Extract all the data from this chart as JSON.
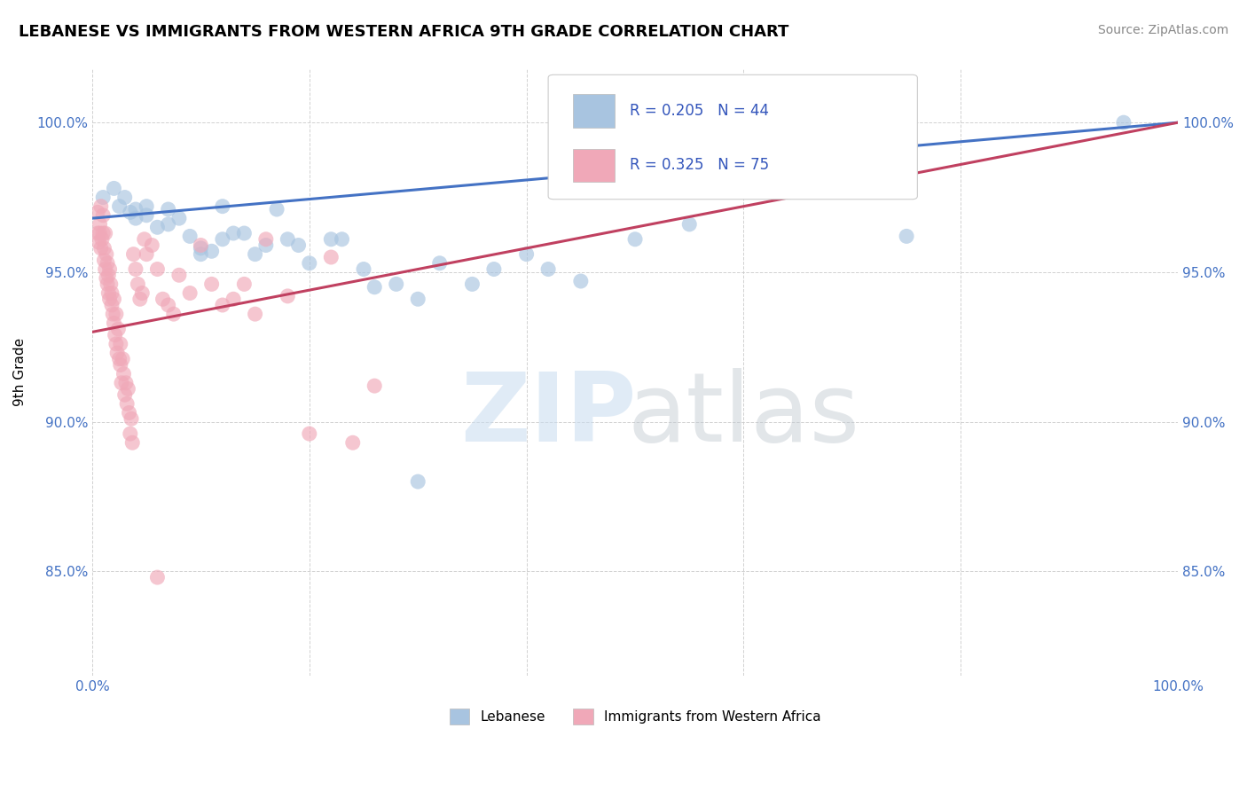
{
  "title": "LEBANESE VS IMMIGRANTS FROM WESTERN AFRICA 9TH GRADE CORRELATION CHART",
  "source_text": "Source: ZipAtlas.com",
  "ylabel": "9th Grade",
  "xlim": [
    0.0,
    1.0
  ],
  "ylim": [
    0.815,
    1.018
  ],
  "xticks": [
    0.0,
    0.2,
    0.4,
    0.6,
    0.8,
    1.0
  ],
  "xtick_labels": [
    "0.0%",
    "",
    "",
    "",
    "",
    "100.0%"
  ],
  "yticks": [
    0.85,
    0.9,
    0.95,
    1.0
  ],
  "ytick_labels": [
    "85.0%",
    "90.0%",
    "95.0%",
    "100.0%"
  ],
  "blue_color": "#A8C4E0",
  "pink_color": "#F0A8B8",
  "blue_line_color": "#4472C4",
  "pink_line_color": "#C04060",
  "legend_label_blue": "Lebanese",
  "legend_label_pink": "Immigrants from Western Africa",
  "blue_scatter": [
    [
      0.01,
      0.975
    ],
    [
      0.02,
      0.978
    ],
    [
      0.025,
      0.972
    ],
    [
      0.03,
      0.975
    ],
    [
      0.035,
      0.97
    ],
    [
      0.04,
      0.971
    ],
    [
      0.04,
      0.968
    ],
    [
      0.05,
      0.972
    ],
    [
      0.05,
      0.969
    ],
    [
      0.06,
      0.965
    ],
    [
      0.07,
      0.971
    ],
    [
      0.07,
      0.966
    ],
    [
      0.08,
      0.968
    ],
    [
      0.09,
      0.962
    ],
    [
      0.1,
      0.958
    ],
    [
      0.1,
      0.956
    ],
    [
      0.11,
      0.957
    ],
    [
      0.12,
      0.972
    ],
    [
      0.12,
      0.961
    ],
    [
      0.13,
      0.963
    ],
    [
      0.14,
      0.963
    ],
    [
      0.15,
      0.956
    ],
    [
      0.16,
      0.959
    ],
    [
      0.17,
      0.971
    ],
    [
      0.18,
      0.961
    ],
    [
      0.19,
      0.959
    ],
    [
      0.2,
      0.953
    ],
    [
      0.22,
      0.961
    ],
    [
      0.23,
      0.961
    ],
    [
      0.25,
      0.951
    ],
    [
      0.26,
      0.945
    ],
    [
      0.28,
      0.946
    ],
    [
      0.3,
      0.941
    ],
    [
      0.32,
      0.953
    ],
    [
      0.35,
      0.946
    ],
    [
      0.37,
      0.951
    ],
    [
      0.4,
      0.956
    ],
    [
      0.42,
      0.951
    ],
    [
      0.45,
      0.947
    ],
    [
      0.3,
      0.88
    ],
    [
      0.5,
      0.961
    ],
    [
      0.55,
      0.966
    ],
    [
      0.75,
      0.962
    ],
    [
      0.95,
      1.0
    ]
  ],
  "pink_scatter": [
    [
      0.005,
      0.97
    ],
    [
      0.005,
      0.963
    ],
    [
      0.006,
      0.96
    ],
    [
      0.007,
      0.966
    ],
    [
      0.007,
      0.963
    ],
    [
      0.008,
      0.958
    ],
    [
      0.008,
      0.972
    ],
    [
      0.009,
      0.961
    ],
    [
      0.01,
      0.969
    ],
    [
      0.01,
      0.963
    ],
    [
      0.011,
      0.958
    ],
    [
      0.011,
      0.954
    ],
    [
      0.012,
      0.951
    ],
    [
      0.012,
      0.963
    ],
    [
      0.013,
      0.956
    ],
    [
      0.013,
      0.948
    ],
    [
      0.014,
      0.946
    ],
    [
      0.014,
      0.953
    ],
    [
      0.015,
      0.949
    ],
    [
      0.015,
      0.943
    ],
    [
      0.016,
      0.951
    ],
    [
      0.016,
      0.941
    ],
    [
      0.017,
      0.946
    ],
    [
      0.018,
      0.939
    ],
    [
      0.018,
      0.943
    ],
    [
      0.019,
      0.936
    ],
    [
      0.02,
      0.941
    ],
    [
      0.02,
      0.933
    ],
    [
      0.021,
      0.929
    ],
    [
      0.022,
      0.936
    ],
    [
      0.022,
      0.926
    ],
    [
      0.023,
      0.923
    ],
    [
      0.024,
      0.931
    ],
    [
      0.025,
      0.921
    ],
    [
      0.026,
      0.926
    ],
    [
      0.026,
      0.919
    ],
    [
      0.027,
      0.913
    ],
    [
      0.028,
      0.921
    ],
    [
      0.029,
      0.916
    ],
    [
      0.03,
      0.909
    ],
    [
      0.031,
      0.913
    ],
    [
      0.032,
      0.906
    ],
    [
      0.033,
      0.911
    ],
    [
      0.034,
      0.903
    ],
    [
      0.035,
      0.896
    ],
    [
      0.036,
      0.901
    ],
    [
      0.037,
      0.893
    ],
    [
      0.038,
      0.956
    ],
    [
      0.04,
      0.951
    ],
    [
      0.042,
      0.946
    ],
    [
      0.044,
      0.941
    ],
    [
      0.046,
      0.943
    ],
    [
      0.048,
      0.961
    ],
    [
      0.05,
      0.956
    ],
    [
      0.055,
      0.959
    ],
    [
      0.06,
      0.951
    ],
    [
      0.065,
      0.941
    ],
    [
      0.07,
      0.939
    ],
    [
      0.075,
      0.936
    ],
    [
      0.08,
      0.949
    ],
    [
      0.09,
      0.943
    ],
    [
      0.1,
      0.959
    ],
    [
      0.11,
      0.946
    ],
    [
      0.12,
      0.939
    ],
    [
      0.13,
      0.941
    ],
    [
      0.14,
      0.946
    ],
    [
      0.15,
      0.936
    ],
    [
      0.16,
      0.961
    ],
    [
      0.18,
      0.942
    ],
    [
      0.2,
      0.896
    ],
    [
      0.22,
      0.955
    ],
    [
      0.24,
      0.893
    ],
    [
      0.26,
      0.912
    ],
    [
      0.06,
      0.848
    ]
  ],
  "blue_trendline": [
    [
      0.0,
      0.968
    ],
    [
      1.0,
      1.0
    ]
  ],
  "pink_trendline": [
    [
      0.0,
      0.93
    ],
    [
      1.0,
      1.0
    ]
  ]
}
